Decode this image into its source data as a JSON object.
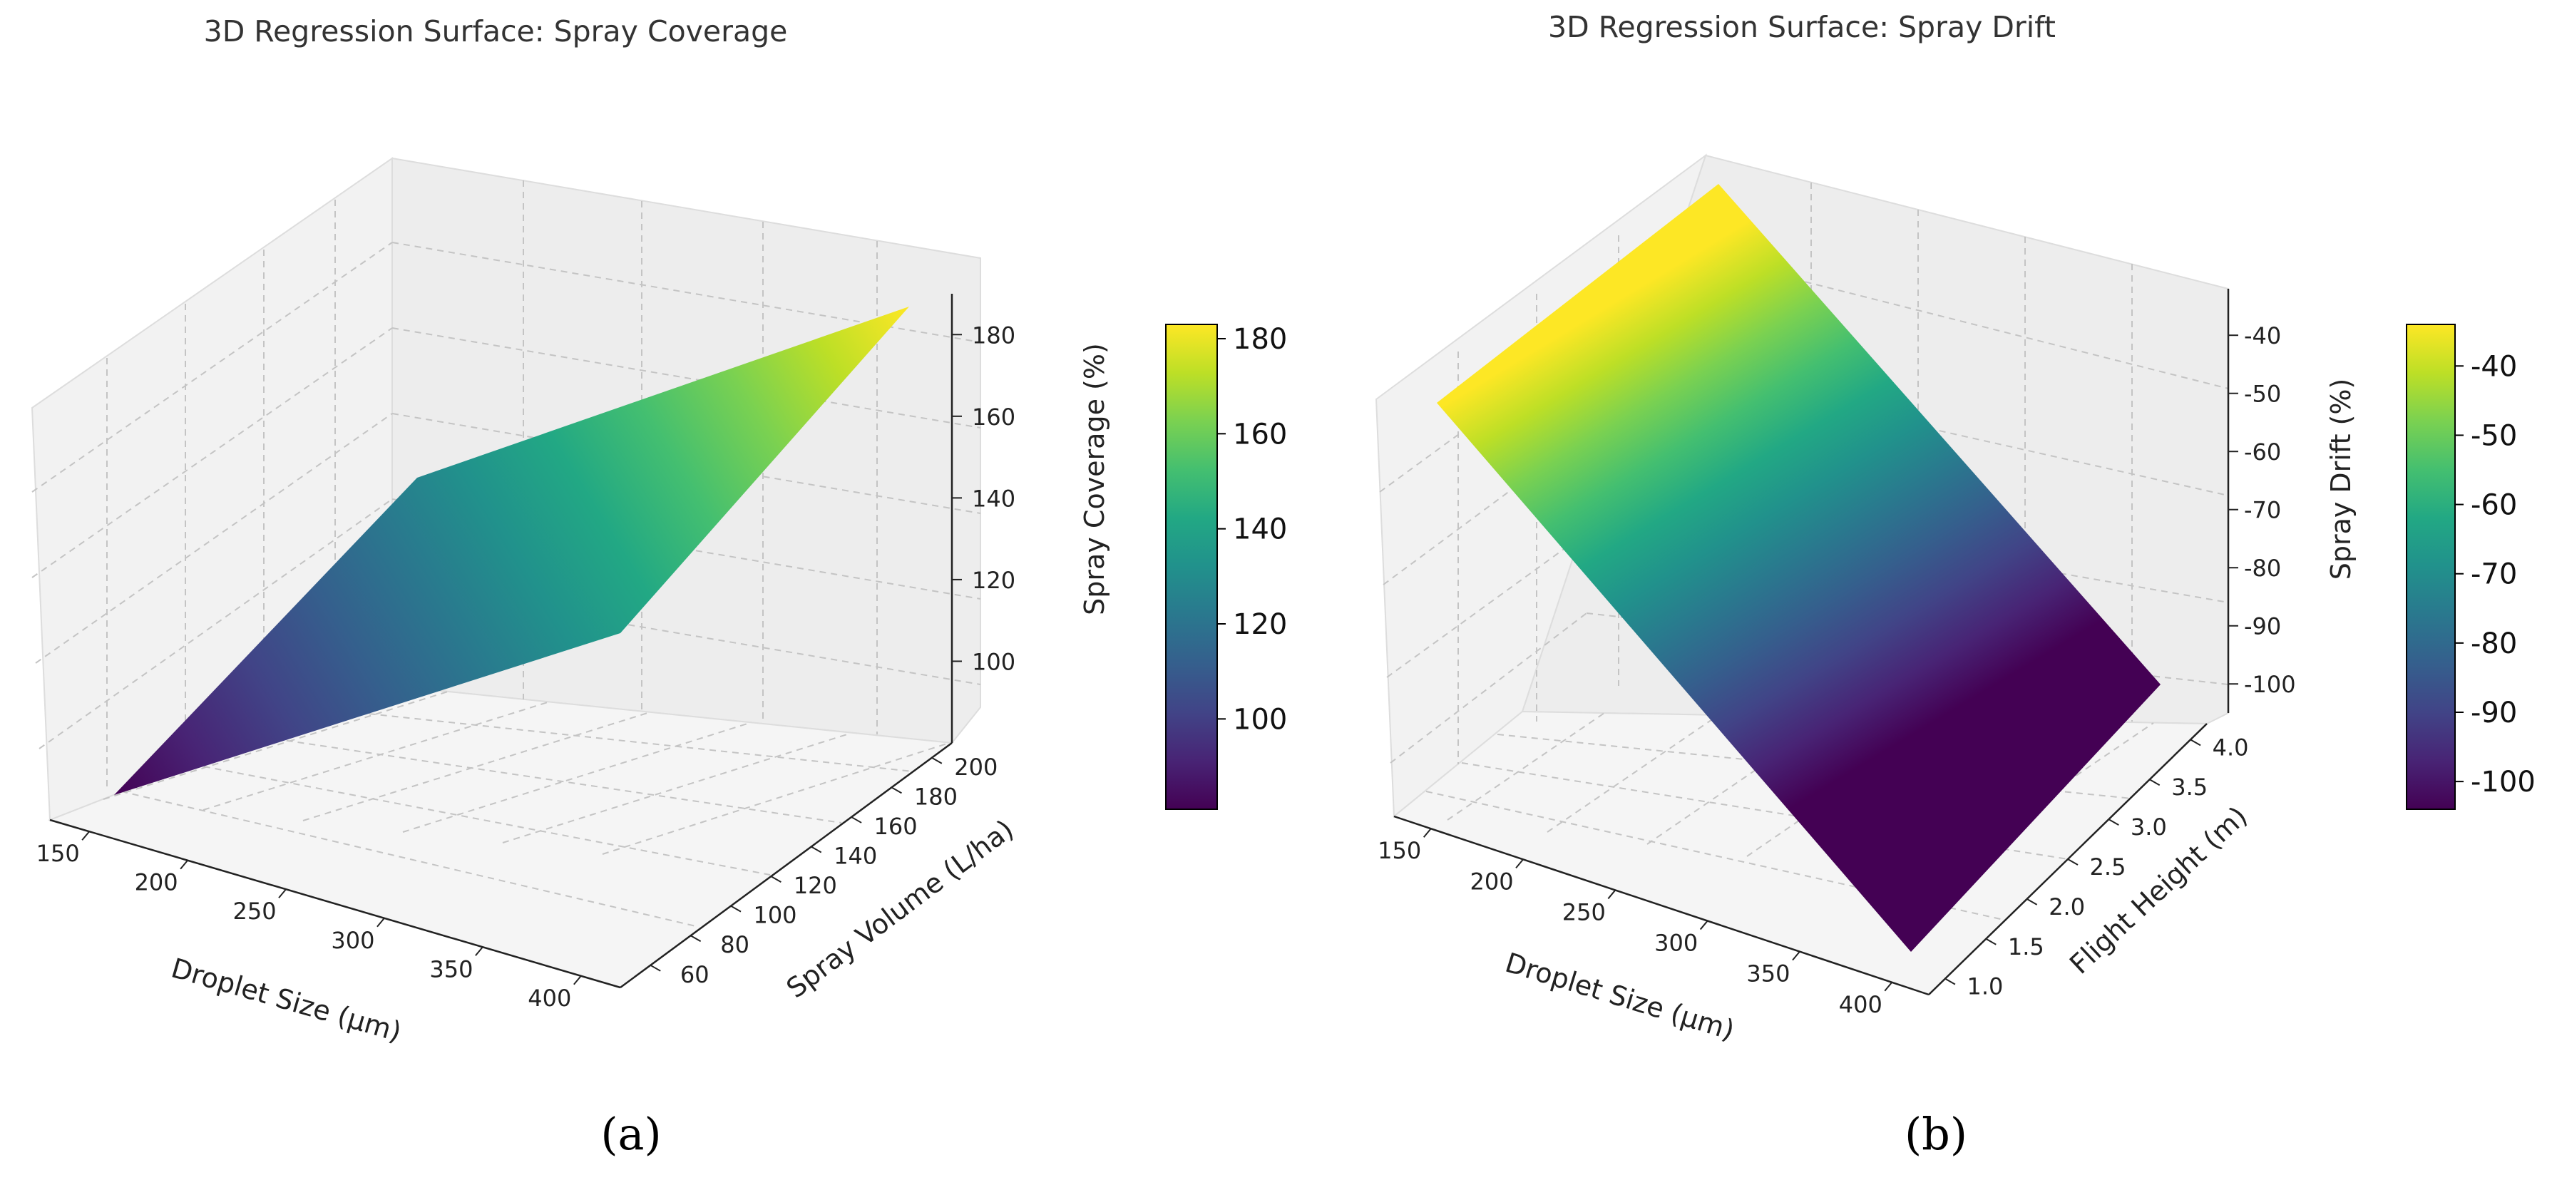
{
  "chart_data": [
    {
      "panel": "(a)",
      "type": "surface3d",
      "title": "3D Regression Surface: Spray Coverage",
      "xlabel": "Droplet Size (μm)",
      "ylabel": "Spray Volume (L/ha)",
      "zlabel": "Spray Coverage (%)",
      "x_ticks": [
        150,
        200,
        250,
        300,
        350,
        400
      ],
      "y_ticks": [
        60,
        80,
        100,
        120,
        140,
        160,
        180,
        200
      ],
      "z_ticks": [
        100,
        120,
        140,
        160,
        180
      ],
      "x_range": [
        130,
        420
      ],
      "y_range": [
        45,
        210
      ],
      "z_range": [
        80,
        190
      ],
      "surface_x": [
        150,
        400
      ],
      "surface_y": [
        50,
        200
      ],
      "surface_z_corners": {
        "x0y0": 81,
        "x1y0": 132,
        "x0y1": 129,
        "x1y1": 182
      },
      "colorbar_ticks": [
        100,
        120,
        140,
        160,
        180
      ],
      "colorbar_range": [
        81,
        183
      ],
      "colormap": "viridis"
    },
    {
      "panel": "(b)",
      "type": "surface3d",
      "title": "3D Regression Surface: Spray Drift",
      "xlabel": "Droplet Size (μm)",
      "ylabel": "Flight Height (m)",
      "zlabel": "Spray Drift (%)",
      "x_ticks": [
        150,
        200,
        250,
        300,
        350,
        400
      ],
      "y_ticks": [
        1.0,
        1.5,
        2.0,
        2.5,
        3.0,
        3.5,
        4.0
      ],
      "z_ticks": [
        -40,
        -50,
        -60,
        -70,
        -80,
        -90,
        -100
      ],
      "x_range": [
        130,
        420
      ],
      "y_range": [
        0.8,
        4.2
      ],
      "z_range": [
        -105,
        -32
      ],
      "surface_x": [
        150,
        400
      ],
      "surface_y": [
        1.0,
        4.0
      ],
      "surface_z_corners": {
        "x0y0": -35,
        "x1y0": -104,
        "x0y1": -34,
        "x1y1": -103
      },
      "colorbar_ticks": [
        -40,
        -50,
        -60,
        -70,
        -80,
        -90,
        -100
      ],
      "colorbar_range": [
        -104,
        -34
      ],
      "colormap": "viridis"
    }
  ]
}
